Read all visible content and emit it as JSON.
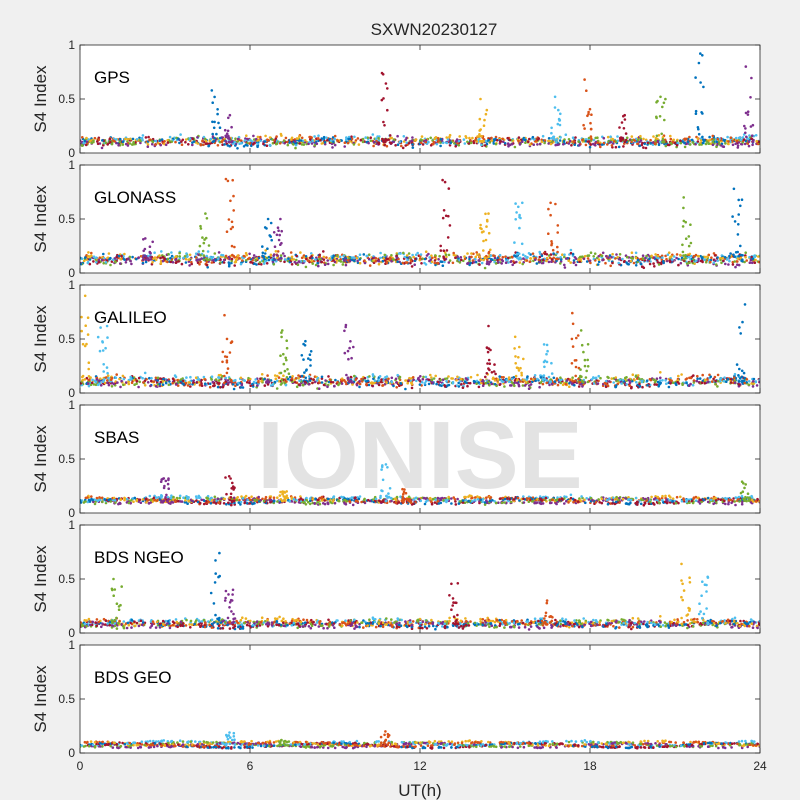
{
  "figure": {
    "title": "SXWN20230127",
    "watermark": "IONISE",
    "xlabel": "UT(h)",
    "background_color": "#f0f0f0",
    "axes_color": "#ffffff"
  },
  "chart_data": {
    "type": "scatter",
    "note_on_points": "dense per-satellite S4 index scatter; values sampled to represent the visible clusters",
    "x_axis": {
      "label": "UT(h)",
      "range": [
        0,
        24
      ],
      "ticks": [
        0,
        6,
        12,
        18,
        24
      ],
      "tick_labels": [
        "0",
        "6",
        "12",
        "18",
        "24"
      ]
    },
    "y_axis": {
      "label": "S4 Index",
      "range": [
        0,
        1
      ],
      "ticks": [
        0,
        0.5,
        1
      ],
      "tick_labels": [
        "0",
        "0.5",
        "1"
      ]
    },
    "grid": false,
    "series_colors": [
      "#0072BD",
      "#D95319",
      "#EDB120",
      "#7E2F8E",
      "#77AC30",
      "#4DBEEE",
      "#A2142F"
    ],
    "panels": [
      {
        "name": "GPS",
        "baseline": 0.1,
        "spread": 0.05,
        "spikes": [
          {
            "t": 4.8,
            "peak": 0.58
          },
          {
            "t": 5.3,
            "peak": 0.35
          },
          {
            "t": 10.8,
            "peak": 0.74
          },
          {
            "t": 14.2,
            "peak": 0.5
          },
          {
            "t": 16.8,
            "peak": 0.52
          },
          {
            "t": 17.9,
            "peak": 0.68
          },
          {
            "t": 20.5,
            "peak": 0.52
          },
          {
            "t": 21.9,
            "peak": 0.92
          },
          {
            "t": 23.6,
            "peak": 0.8
          },
          {
            "t": 19.2,
            "peak": 0.35
          }
        ]
      },
      {
        "name": "GLONASS",
        "baseline": 0.12,
        "spread": 0.07,
        "spikes": [
          {
            "t": 5.3,
            "peak": 0.87
          },
          {
            "t": 4.4,
            "peak": 0.55
          },
          {
            "t": 6.6,
            "peak": 0.5
          },
          {
            "t": 7.0,
            "peak": 0.5
          },
          {
            "t": 12.9,
            "peak": 0.86
          },
          {
            "t": 14.3,
            "peak": 0.55
          },
          {
            "t": 15.5,
            "peak": 0.65
          },
          {
            "t": 16.7,
            "peak": 0.65
          },
          {
            "t": 21.4,
            "peak": 0.7
          },
          {
            "t": 23.2,
            "peak": 0.78
          },
          {
            "t": 2.4,
            "peak": 0.32
          }
        ]
      },
      {
        "name": "GALILEO",
        "baseline": 0.1,
        "spread": 0.06,
        "spikes": [
          {
            "t": 0.2,
            "peak": 0.9
          },
          {
            "t": 0.8,
            "peak": 0.62
          },
          {
            "t": 5.2,
            "peak": 0.72
          },
          {
            "t": 7.2,
            "peak": 0.58
          },
          {
            "t": 8.0,
            "peak": 0.48
          },
          {
            "t": 9.5,
            "peak": 0.63
          },
          {
            "t": 14.5,
            "peak": 0.62
          },
          {
            "t": 15.5,
            "peak": 0.52
          },
          {
            "t": 16.5,
            "peak": 0.45
          },
          {
            "t": 17.5,
            "peak": 0.74
          },
          {
            "t": 17.8,
            "peak": 0.58
          },
          {
            "t": 23.3,
            "peak": 0.82
          }
        ]
      },
      {
        "name": "SBAS",
        "baseline": 0.11,
        "spread": 0.025,
        "spikes": [
          {
            "t": 3.0,
            "peak": 0.32
          },
          {
            "t": 5.3,
            "peak": 0.34
          },
          {
            "t": 7.2,
            "peak": 0.2
          },
          {
            "t": 10.8,
            "peak": 0.45
          },
          {
            "t": 11.5,
            "peak": 0.22
          },
          {
            "t": 23.5,
            "peak": 0.29
          }
        ]
      },
      {
        "name": "BDS NGEO",
        "baseline": 0.08,
        "spread": 0.04,
        "spikes": [
          {
            "t": 1.3,
            "peak": 0.5
          },
          {
            "t": 4.8,
            "peak": 0.74
          },
          {
            "t": 5.3,
            "peak": 0.4
          },
          {
            "t": 13.2,
            "peak": 0.46
          },
          {
            "t": 21.4,
            "peak": 0.64
          },
          {
            "t": 22.0,
            "peak": 0.52
          },
          {
            "t": 16.5,
            "peak": 0.3
          }
        ]
      },
      {
        "name": "BDS GEO",
        "baseline": 0.07,
        "spread": 0.012,
        "spikes": [
          {
            "t": 5.3,
            "peak": 0.19
          },
          {
            "t": 10.8,
            "peak": 0.2
          },
          {
            "t": 7.2,
            "peak": 0.12
          }
        ]
      }
    ]
  }
}
